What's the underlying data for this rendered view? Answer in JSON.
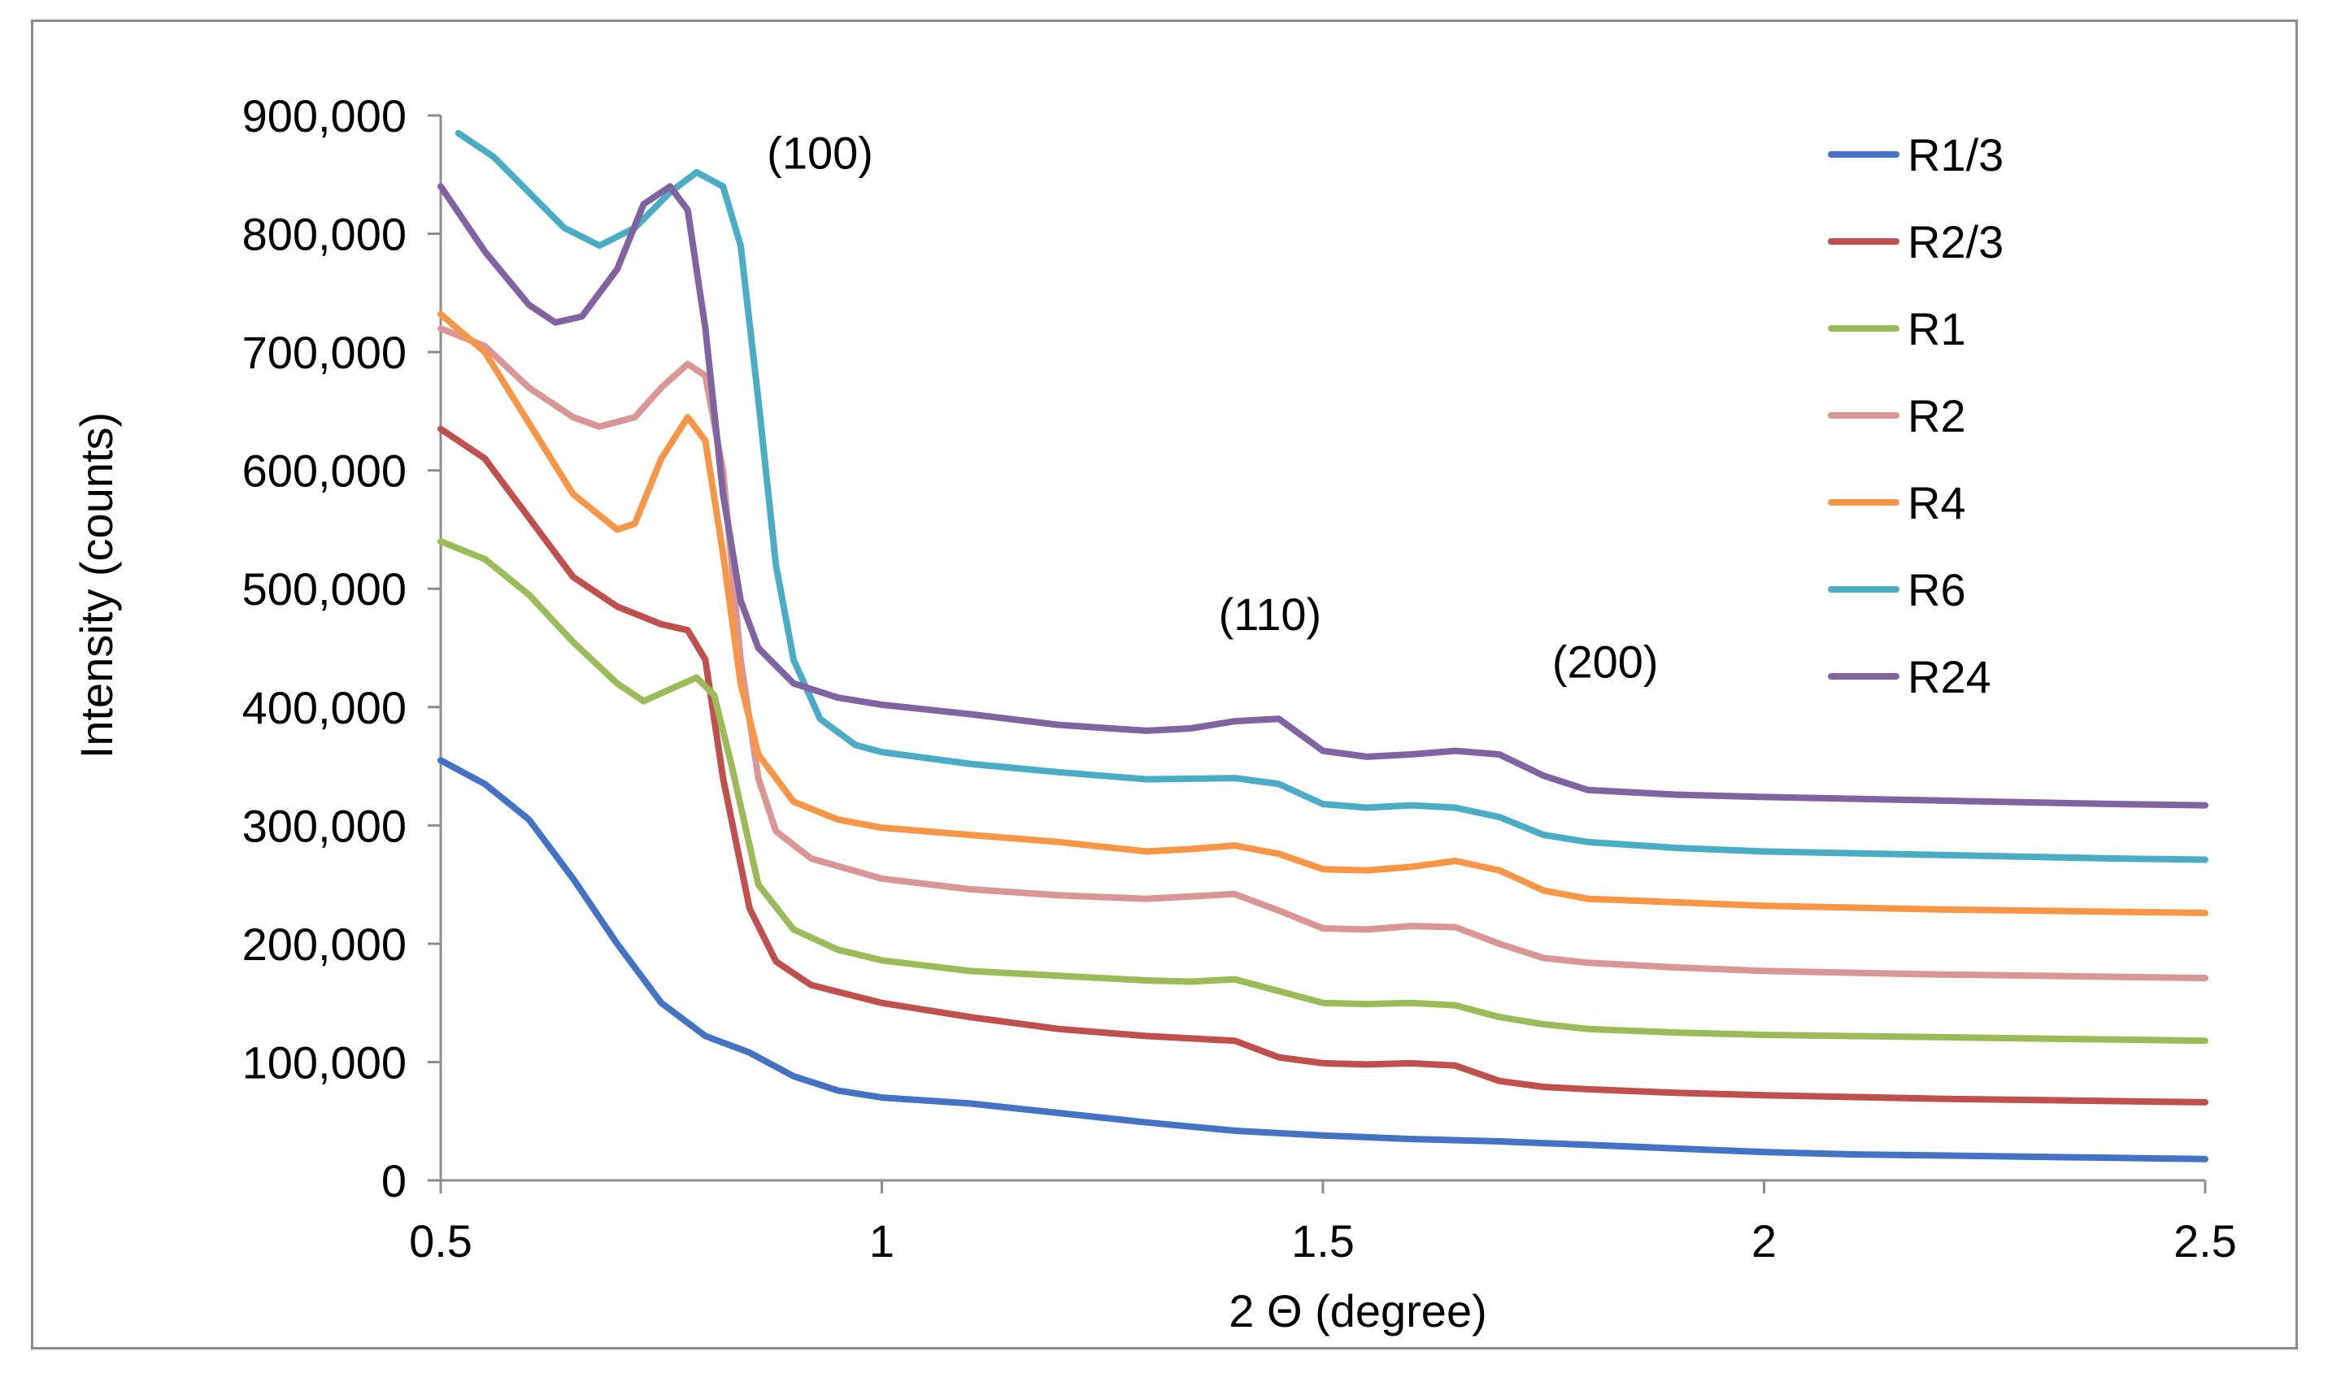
{
  "chart_data": {
    "type": "line",
    "title": "",
    "xlabel": "2 Θ (degree)",
    "ylabel": "Intensity (counts)",
    "xlim": [
      0.5,
      2.5
    ],
    "ylim": [
      0,
      900000
    ],
    "x_ticks": [
      0.5,
      1,
      1.5,
      2,
      2.5
    ],
    "x_tick_labels": [
      "0.5",
      "1",
      "1.5",
      "2",
      "2.5"
    ],
    "y_ticks": [
      0,
      100000,
      200000,
      300000,
      400000,
      500000,
      600000,
      700000,
      800000,
      900000
    ],
    "y_tick_labels": [
      "0",
      "100,000",
      "200,000",
      "300,000",
      "400,000",
      "500,000",
      "600,000",
      "700,000",
      "800,000",
      "900,000"
    ],
    "grid": false,
    "legend_position": "top-right",
    "annotations": [
      {
        "text": "(100)",
        "x": 0.93,
        "y": 855000
      },
      {
        "text": "(110)",
        "x": 1.44,
        "y": 465000
      },
      {
        "text": "(200)",
        "x": 1.82,
        "y": 425000
      }
    ],
    "series": [
      {
        "name": "R1/3",
        "color": "#4472C4",
        "points": [
          [
            0.5,
            355000
          ],
          [
            0.55,
            335000
          ],
          [
            0.6,
            305000
          ],
          [
            0.65,
            255000
          ],
          [
            0.7,
            200000
          ],
          [
            0.75,
            150000
          ],
          [
            0.8,
            122000
          ],
          [
            0.85,
            108000
          ],
          [
            0.9,
            88000
          ],
          [
            0.95,
            76000
          ],
          [
            1.0,
            70000
          ],
          [
            1.1,
            65000
          ],
          [
            1.2,
            57000
          ],
          [
            1.3,
            49000
          ],
          [
            1.4,
            42000
          ],
          [
            1.5,
            38000
          ],
          [
            1.6,
            35000
          ],
          [
            1.7,
            33000
          ],
          [
            1.8,
            30000
          ],
          [
            1.9,
            27000
          ],
          [
            2.0,
            24000
          ],
          [
            2.1,
            22000
          ],
          [
            2.2,
            21000
          ],
          [
            2.3,
            20000
          ],
          [
            2.4,
            19000
          ],
          [
            2.5,
            18000
          ]
        ]
      },
      {
        "name": "R2/3",
        "color": "#C0504D",
        "points": [
          [
            0.5,
            635000
          ],
          [
            0.55,
            610000
          ],
          [
            0.6,
            560000
          ],
          [
            0.65,
            510000
          ],
          [
            0.7,
            485000
          ],
          [
            0.75,
            470000
          ],
          [
            0.78,
            465000
          ],
          [
            0.8,
            440000
          ],
          [
            0.82,
            340000
          ],
          [
            0.85,
            230000
          ],
          [
            0.88,
            185000
          ],
          [
            0.92,
            165000
          ],
          [
            1.0,
            150000
          ],
          [
            1.1,
            138000
          ],
          [
            1.2,
            128000
          ],
          [
            1.3,
            122000
          ],
          [
            1.4,
            118000
          ],
          [
            1.45,
            104000
          ],
          [
            1.5,
            99000
          ],
          [
            1.55,
            98000
          ],
          [
            1.6,
            99000
          ],
          [
            1.65,
            97000
          ],
          [
            1.7,
            84000
          ],
          [
            1.75,
            79000
          ],
          [
            1.8,
            77000
          ],
          [
            1.9,
            74000
          ],
          [
            2.0,
            72000
          ],
          [
            2.2,
            69000
          ],
          [
            2.4,
            67000
          ],
          [
            2.5,
            66000
          ]
        ]
      },
      {
        "name": "R1",
        "color": "#9BBB59",
        "points": [
          [
            0.5,
            540000
          ],
          [
            0.55,
            525000
          ],
          [
            0.6,
            495000
          ],
          [
            0.65,
            455000
          ],
          [
            0.7,
            420000
          ],
          [
            0.73,
            405000
          ],
          [
            0.76,
            415000
          ],
          [
            0.79,
            425000
          ],
          [
            0.81,
            410000
          ],
          [
            0.83,
            350000
          ],
          [
            0.86,
            250000
          ],
          [
            0.9,
            212000
          ],
          [
            0.95,
            195000
          ],
          [
            1.0,
            186000
          ],
          [
            1.1,
            177000
          ],
          [
            1.2,
            173000
          ],
          [
            1.3,
            169000
          ],
          [
            1.35,
            168000
          ],
          [
            1.4,
            170000
          ],
          [
            1.45,
            160000
          ],
          [
            1.5,
            150000
          ],
          [
            1.55,
            149000
          ],
          [
            1.6,
            150000
          ],
          [
            1.65,
            148000
          ],
          [
            1.7,
            138000
          ],
          [
            1.75,
            132000
          ],
          [
            1.8,
            128000
          ],
          [
            1.9,
            125000
          ],
          [
            2.0,
            123000
          ],
          [
            2.2,
            121000
          ],
          [
            2.4,
            119000
          ],
          [
            2.5,
            118000
          ]
        ]
      },
      {
        "name": "R2",
        "color": "#D99694",
        "points": [
          [
            0.5,
            720000
          ],
          [
            0.55,
            705000
          ],
          [
            0.6,
            670000
          ],
          [
            0.65,
            645000
          ],
          [
            0.68,
            637000
          ],
          [
            0.72,
            645000
          ],
          [
            0.75,
            670000
          ],
          [
            0.78,
            690000
          ],
          [
            0.8,
            680000
          ],
          [
            0.82,
            600000
          ],
          [
            0.84,
            440000
          ],
          [
            0.86,
            340000
          ],
          [
            0.88,
            295000
          ],
          [
            0.92,
            272000
          ],
          [
            1.0,
            255000
          ],
          [
            1.1,
            246000
          ],
          [
            1.2,
            241000
          ],
          [
            1.3,
            238000
          ],
          [
            1.35,
            240000
          ],
          [
            1.4,
            242000
          ],
          [
            1.45,
            228000
          ],
          [
            1.5,
            213000
          ],
          [
            1.55,
            212000
          ],
          [
            1.6,
            215000
          ],
          [
            1.65,
            214000
          ],
          [
            1.7,
            200000
          ],
          [
            1.75,
            188000
          ],
          [
            1.8,
            184000
          ],
          [
            1.9,
            180000
          ],
          [
            2.0,
            177000
          ],
          [
            2.2,
            174000
          ],
          [
            2.4,
            172000
          ],
          [
            2.5,
            171000
          ]
        ]
      },
      {
        "name": "R4",
        "color": "#F79646",
        "points": [
          [
            0.5,
            732000
          ],
          [
            0.55,
            700000
          ],
          [
            0.6,
            640000
          ],
          [
            0.65,
            580000
          ],
          [
            0.7,
            550000
          ],
          [
            0.72,
            555000
          ],
          [
            0.75,
            610000
          ],
          [
            0.78,
            645000
          ],
          [
            0.8,
            625000
          ],
          [
            0.82,
            530000
          ],
          [
            0.84,
            420000
          ],
          [
            0.86,
            360000
          ],
          [
            0.9,
            320000
          ],
          [
            0.95,
            305000
          ],
          [
            1.0,
            298000
          ],
          [
            1.1,
            292000
          ],
          [
            1.2,
            286000
          ],
          [
            1.3,
            278000
          ],
          [
            1.35,
            280000
          ],
          [
            1.4,
            283000
          ],
          [
            1.45,
            276000
          ],
          [
            1.5,
            263000
          ],
          [
            1.55,
            262000
          ],
          [
            1.6,
            265000
          ],
          [
            1.65,
            270000
          ],
          [
            1.7,
            262000
          ],
          [
            1.75,
            245000
          ],
          [
            1.8,
            238000
          ],
          [
            1.9,
            235000
          ],
          [
            2.0,
            232000
          ],
          [
            2.2,
            229000
          ],
          [
            2.4,
            227000
          ],
          [
            2.5,
            226000
          ]
        ]
      },
      {
        "name": "R6",
        "color": "#4BACC6",
        "points": [
          [
            0.52,
            885000
          ],
          [
            0.56,
            865000
          ],
          [
            0.6,
            835000
          ],
          [
            0.64,
            805000
          ],
          [
            0.68,
            790000
          ],
          [
            0.72,
            805000
          ],
          [
            0.76,
            835000
          ],
          [
            0.79,
            852000
          ],
          [
            0.82,
            840000
          ],
          [
            0.84,
            790000
          ],
          [
            0.86,
            660000
          ],
          [
            0.88,
            520000
          ],
          [
            0.9,
            440000
          ],
          [
            0.93,
            390000
          ],
          [
            0.97,
            368000
          ],
          [
            1.0,
            362000
          ],
          [
            1.1,
            352000
          ],
          [
            1.2,
            345000
          ],
          [
            1.3,
            339000
          ],
          [
            1.4,
            340000
          ],
          [
            1.45,
            335000
          ],
          [
            1.5,
            318000
          ],
          [
            1.55,
            315000
          ],
          [
            1.6,
            317000
          ],
          [
            1.65,
            315000
          ],
          [
            1.7,
            307000
          ],
          [
            1.75,
            292000
          ],
          [
            1.8,
            286000
          ],
          [
            1.9,
            281000
          ],
          [
            2.0,
            278000
          ],
          [
            2.2,
            275000
          ],
          [
            2.4,
            272000
          ],
          [
            2.5,
            271000
          ]
        ]
      },
      {
        "name": "R24",
        "color": "#8064A2",
        "points": [
          [
            0.5,
            840000
          ],
          [
            0.55,
            785000
          ],
          [
            0.6,
            740000
          ],
          [
            0.63,
            725000
          ],
          [
            0.66,
            730000
          ],
          [
            0.7,
            770000
          ],
          [
            0.73,
            825000
          ],
          [
            0.76,
            840000
          ],
          [
            0.78,
            820000
          ],
          [
            0.8,
            720000
          ],
          [
            0.82,
            580000
          ],
          [
            0.84,
            490000
          ],
          [
            0.86,
            450000
          ],
          [
            0.9,
            420000
          ],
          [
            0.95,
            408000
          ],
          [
            1.0,
            402000
          ],
          [
            1.1,
            394000
          ],
          [
            1.2,
            385000
          ],
          [
            1.3,
            380000
          ],
          [
            1.35,
            382000
          ],
          [
            1.4,
            388000
          ],
          [
            1.45,
            390000
          ],
          [
            1.5,
            363000
          ],
          [
            1.55,
            358000
          ],
          [
            1.6,
            360000
          ],
          [
            1.65,
            363000
          ],
          [
            1.7,
            360000
          ],
          [
            1.75,
            342000
          ],
          [
            1.8,
            330000
          ],
          [
            1.9,
            326000
          ],
          [
            2.0,
            324000
          ],
          [
            2.2,
            321000
          ],
          [
            2.4,
            318000
          ],
          [
            2.5,
            317000
          ]
        ]
      }
    ]
  }
}
